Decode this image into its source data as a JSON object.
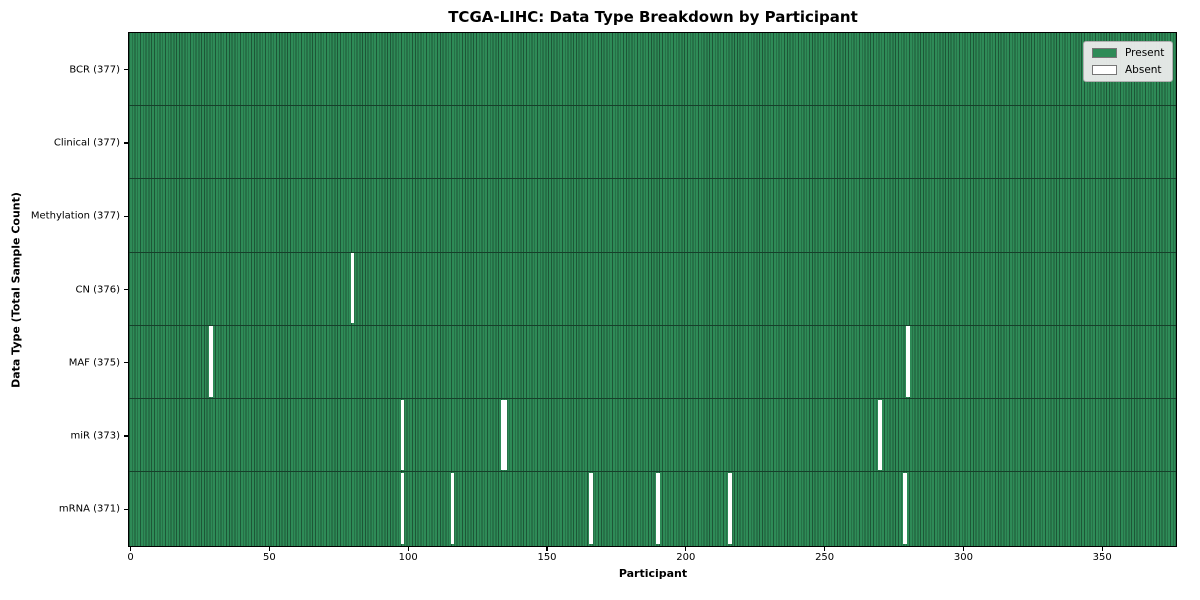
{
  "figure": {
    "title": "TCGA-LIHC: Data Type Breakdown by Participant",
    "xlabel": "Participant",
    "ylabel": "Data Type (Total Sample Count)"
  },
  "legend": {
    "items": [
      {
        "label": "Present",
        "color": "#2e8b57"
      },
      {
        "label": "Absent",
        "color": "#ffffff"
      }
    ]
  },
  "colors": {
    "present_fill": "#2e8b57",
    "cell_edge": "#1d5737",
    "row_divider": "#16402a",
    "absent_fill": "#ffffff",
    "axes_border": "#000000"
  },
  "chart_data": {
    "type": "heatmap",
    "title": "TCGA-LIHC: Data Type Breakdown by Participant",
    "xlabel": "Participant",
    "ylabel": "Data Type (Total Sample Count)",
    "legend": [
      "Present",
      "Absent"
    ],
    "legend_position": "upper right",
    "n_participants": 377,
    "xlim": [
      -0.5,
      376.5
    ],
    "x_ticks": [
      0,
      50,
      100,
      150,
      200,
      250,
      300,
      350
    ],
    "rows": [
      {
        "data_type": "BCR",
        "label": "BCR (377)",
        "total_samples": 377,
        "absent_participants": []
      },
      {
        "data_type": "Clinical",
        "label": "Clinical (377)",
        "total_samples": 377,
        "absent_participants": []
      },
      {
        "data_type": "Methylation",
        "label": "Methylation (377)",
        "total_samples": 377,
        "absent_participants": []
      },
      {
        "data_type": "CN",
        "label": "CN (376)",
        "total_samples": 376,
        "absent_participants": [
          80
        ]
      },
      {
        "data_type": "MAF",
        "label": "MAF (375)",
        "total_samples": 375,
        "absent_participants": [
          29,
          280
        ]
      },
      {
        "data_type": "miR",
        "label": "miR (373)",
        "total_samples": 373,
        "absent_participants": [
          98,
          134,
          135,
          270
        ]
      },
      {
        "data_type": "mRNA",
        "label": "mRNA (371)",
        "total_samples": 371,
        "absent_participants": [
          98,
          116,
          166,
          190,
          216,
          279
        ]
      }
    ]
  }
}
